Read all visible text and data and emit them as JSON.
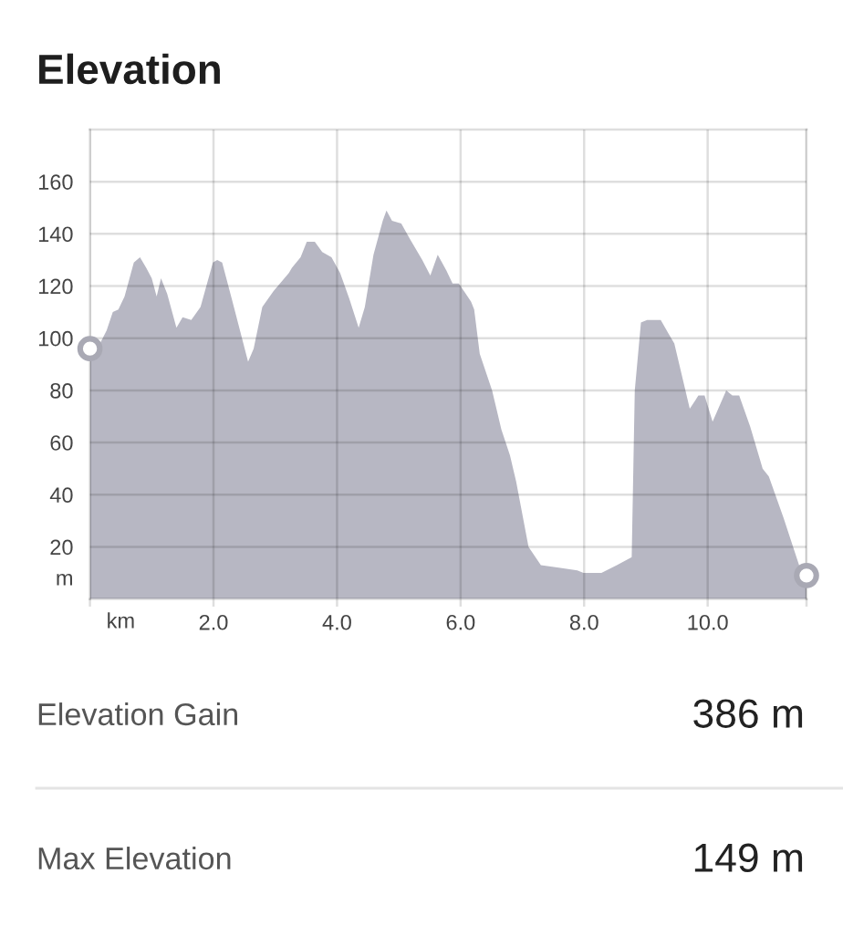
{
  "chart_data": {
    "type": "area",
    "title": "Elevation",
    "xlabel": "km",
    "ylabel": "m",
    "xlim": [
      0,
      11.6
    ],
    "ylim": [
      0,
      180
    ],
    "xticks": [
      {
        "value": 0,
        "label": null
      },
      {
        "value": 2,
        "label": "2.0"
      },
      {
        "value": 4,
        "label": "4.0"
      },
      {
        "value": 6,
        "label": "6.0"
      },
      {
        "value": 8,
        "label": "8.0"
      },
      {
        "value": 10,
        "label": "10.0"
      },
      {
        "value": 11.6,
        "label": null
      }
    ],
    "yticks": [
      20,
      40,
      60,
      80,
      100,
      120,
      140,
      160
    ],
    "grid": true,
    "series": [
      {
        "color": "#b7b7c3",
        "x": [
          0,
          0.12,
          0.27,
          0.37,
          0.46,
          0.56,
          0.71,
          0.81,
          0.91,
          1.0,
          1.08,
          1.15,
          1.25,
          1.4,
          1.5,
          1.64,
          1.79,
          1.99,
          2.06,
          2.14,
          2.33,
          2.56,
          2.65,
          2.79,
          2.97,
          3.22,
          3.27,
          3.41,
          3.51,
          3.64,
          3.76,
          3.91,
          4.05,
          4.2,
          4.35,
          4.45,
          4.59,
          4.74,
          4.8,
          4.89,
          5.04,
          5.18,
          5.38,
          5.51,
          5.63,
          5.77,
          5.87,
          5.97,
          6.17,
          6.22,
          6.31,
          6.51,
          6.66,
          6.8,
          6.9,
          7.1,
          7.3,
          7.59,
          7.89,
          7.99,
          8.28,
          8.53,
          8.77,
          8.82,
          8.92,
          9.02,
          9.24,
          9.36,
          9.46,
          9.71,
          9.85,
          9.95,
          10.08,
          10.3,
          10.4,
          10.51,
          10.69,
          10.89,
          10.99,
          11.23,
          11.48,
          11.6
        ],
        "values": [
          96,
          96,
          103,
          110,
          111,
          116,
          129,
          131,
          127,
          123,
          116,
          123,
          117,
          104,
          108,
          107,
          112,
          129,
          130,
          129,
          112,
          91,
          96,
          112,
          118,
          125,
          127,
          131,
          137,
          137,
          133,
          131,
          125,
          115,
          104,
          112,
          132,
          145,
          149,
          145,
          144,
          138,
          130,
          124,
          132,
          126,
          121,
          121,
          114,
          111,
          94,
          80,
          65,
          55,
          45,
          20,
          13,
          12,
          11,
          10,
          10,
          13,
          16,
          80,
          106,
          107,
          107,
          102,
          98,
          73,
          78,
          78,
          68,
          80,
          78,
          78,
          66,
          50,
          47,
          31,
          13,
          9
        ]
      },
      {
        "type": "scatter",
        "color": "#a9a9b4",
        "marker": "circle",
        "x": [
          0,
          11.6
        ],
        "values": [
          96,
          9
        ]
      }
    ],
    "annotations": [
      "Elevation Gain",
      "386 m",
      "Max Elevation",
      "149 m"
    ]
  }
}
